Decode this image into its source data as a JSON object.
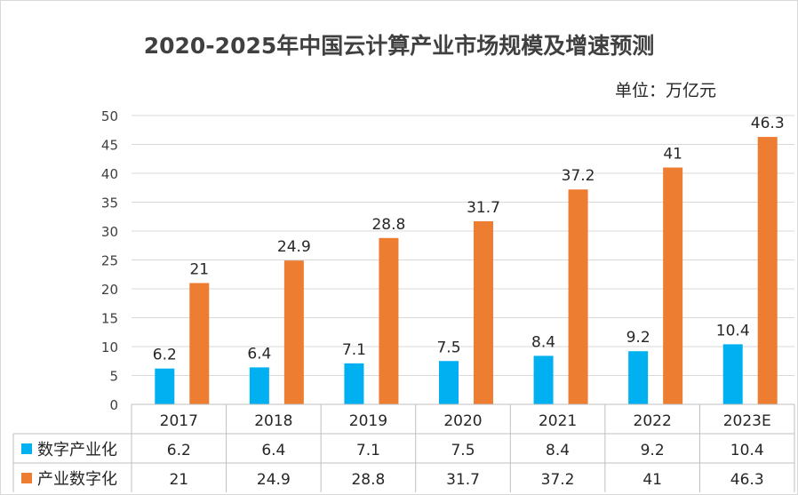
{
  "chart_data": {
    "type": "bar",
    "title": "2020-2025年中国云计算产业市场规模及增速预测",
    "unit": "单位：万亿元",
    "categories": [
      "2017",
      "2018",
      "2019",
      "2020",
      "2021",
      "2022",
      "2023E"
    ],
    "ylim": [
      0,
      50
    ],
    "yticks": [
      "0",
      "5",
      "10",
      "15",
      "20",
      "25",
      "30",
      "35",
      "40",
      "45",
      "50"
    ],
    "grid": true,
    "legend": "data-table",
    "series": [
      {
        "name": "数字产业化",
        "color": "#00b0f0",
        "values": [
          6.2,
          6.4,
          7.1,
          7.5,
          8.4,
          9.2,
          10.4
        ],
        "labels": [
          "6.2",
          "6.4",
          "7.1",
          "7.5",
          "8.4",
          "9.2",
          "10.4"
        ]
      },
      {
        "name": "产业数字化",
        "color": "#ed7d31",
        "values": [
          21,
          24.9,
          28.8,
          31.7,
          37.2,
          41,
          46.3
        ],
        "labels": [
          "21",
          "24.9",
          "28.8",
          "31.7",
          "37.2",
          "41",
          "46.3"
        ]
      }
    ]
  }
}
